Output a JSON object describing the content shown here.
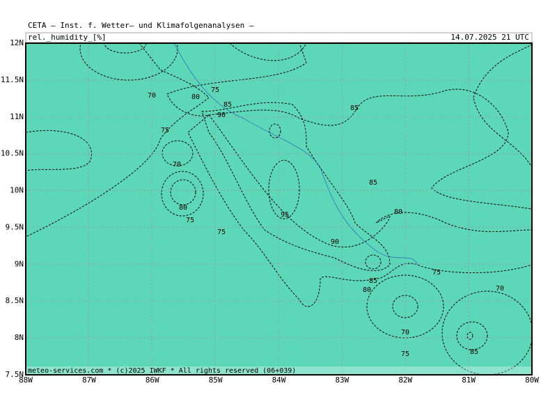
{
  "header": {
    "title": "CETA — Inst. f. Wetter— und Klimafolgenanalysen —",
    "variable": "rel._humidity_[%]",
    "valid_time": "14.07.2025 21 UTC"
  },
  "axes": {
    "lat_labels": [
      "12N",
      "11.5N",
      "11N",
      "10.5N",
      "10N",
      "9.5N",
      "9N",
      "8.5N",
      "8N",
      "7.5N"
    ],
    "lon_labels": [
      "88W",
      "87W",
      "86W",
      "85W",
      "84W",
      "83W",
      "82W",
      "81W",
      "80W"
    ]
  },
  "contour_labels": [
    "70",
    "80",
    "75",
    "85",
    "90",
    "85",
    "75",
    "70",
    "80",
    "75",
    "75",
    "95",
    "85",
    "80",
    "90",
    "85",
    "80",
    "75",
    "70",
    "70",
    "75",
    "85"
  ],
  "footer": "meteo-services.com * (c)2025 IWKF * All rights reserved (06+039)"
}
